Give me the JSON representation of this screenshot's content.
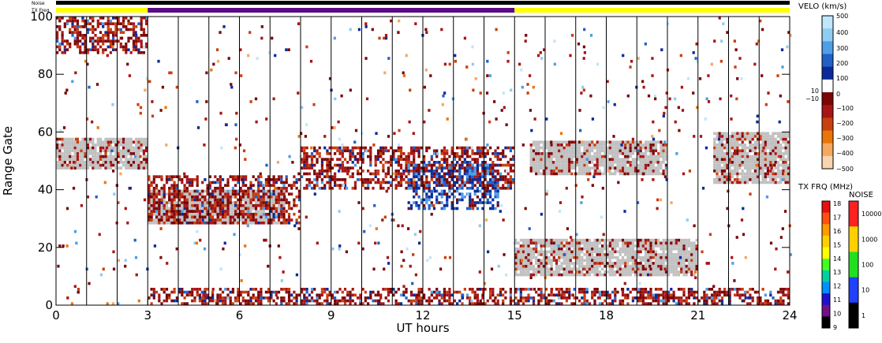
{
  "chart_data": {
    "type": "heatmap",
    "xlabel": "UT hours",
    "ylabel": "Range Gate",
    "xlim": [
      0,
      24
    ],
    "ylim": [
      0,
      100
    ],
    "x_ticks": [
      "0",
      "3",
      "6",
      "9",
      "12",
      "15",
      "18",
      "21",
      "24"
    ],
    "y_ticks": [
      "0",
      "20",
      "40",
      "60",
      "80",
      "100"
    ],
    "top_bars": {
      "noise_label": "Noise",
      "txfreq_label": "TX Freq",
      "noise_color": "#000000",
      "txfreq_segments": [
        {
          "start": 0,
          "end": 3,
          "color": "#ffff00"
        },
        {
          "start": 3,
          "end": 15,
          "color": "#5b0a83"
        },
        {
          "start": 15,
          "end": 24,
          "color": "#ffff00"
        }
      ]
    },
    "ground_scatter_color": "#c0c0c0",
    "velocity_colorbar": {
      "title": "VELO (km/s)",
      "labels": [
        "500",
        "400",
        "300",
        "200",
        "100",
        "10",
        "0",
        "−10",
        "−100",
        "−200",
        "−300",
        "−400",
        "−500"
      ],
      "colors": [
        "#bfe6fb",
        "#8fccf2",
        "#4f9ee6",
        "#2060c8",
        "#0a2a99",
        "#ffffff",
        "#7a0505",
        "#a81515",
        "#c84010",
        "#e8760a",
        "#f5a860",
        "#f8d4b0"
      ]
    },
    "txfreq_colorbar": {
      "title": "TX FRQ (MHz)",
      "labels": [
        "18",
        "17",
        "16",
        "15",
        "14",
        "13",
        "12",
        "11",
        "10",
        "9"
      ],
      "colors": [
        "#e81010",
        "#ff5010",
        "#ff9a00",
        "#ffd000",
        "#ffff00",
        "#40ff20",
        "#00d0a0",
        "#0090ff",
        "#2010d0",
        "#70108a",
        "#000000"
      ]
    },
    "noise_colorbar": {
      "title": "NOISE",
      "labels": [
        "10000",
        "1000",
        "100",
        "10",
        "1"
      ],
      "colors": [
        "#ff2020",
        "#ffd000",
        "#20e020",
        "#2040ff",
        "#000000"
      ]
    },
    "features": [
      {
        "type": "ground_scatter",
        "x": [
          0,
          3
        ],
        "y": [
          47,
          58
        ]
      },
      {
        "type": "ground_scatter",
        "x": [
          3,
          7.5
        ],
        "y": [
          28,
          40
        ]
      },
      {
        "type": "negative_velocity",
        "x": [
          3,
          8
        ],
        "y": [
          28,
          45
        ]
      },
      {
        "type": "negative_velocity",
        "x": [
          8,
          15
        ],
        "y": [
          40,
          55
        ]
      },
      {
        "type": "positive_velocity",
        "x": [
          11.5,
          14.5
        ],
        "y": [
          33,
          50
        ]
      },
      {
        "type": "ground_scatter",
        "x": [
          15,
          21
        ],
        "y": [
          10,
          23
        ]
      },
      {
        "type": "ground_scatter",
        "x": [
          15.5,
          20
        ],
        "y": [
          45,
          57
        ]
      },
      {
        "type": "ground_scatter",
        "x": [
          21.5,
          24
        ],
        "y": [
          42,
          60
        ]
      },
      {
        "type": "negative_velocity",
        "x": [
          3,
          24
        ],
        "y": [
          0,
          6
        ]
      },
      {
        "type": "negative_velocity",
        "x": [
          0,
          3
        ],
        "y": [
          87,
          100
        ]
      }
    ]
  }
}
